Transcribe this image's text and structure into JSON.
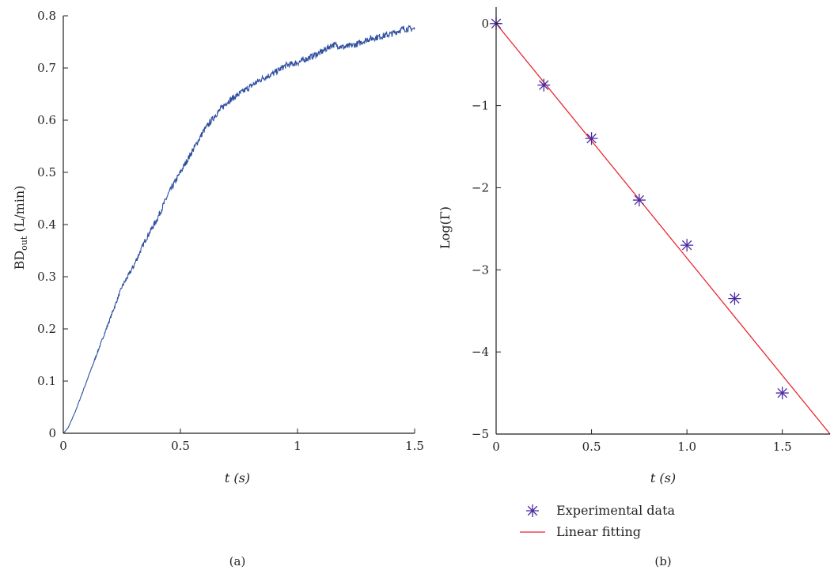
{
  "figure": {
    "panel_a_label": "(a)",
    "panel_b_label": "(b)"
  },
  "colors": {
    "series_a": "#2f4f9f",
    "markers": "#4b2aa0",
    "fit": "#e8262d",
    "axis": "#231f20"
  },
  "chart_data": [
    {
      "type": "line",
      "panel": "(a)",
      "xlabel": "t (s)",
      "ylabel": "BDout (L/min)",
      "ylabel_main": "BD",
      "ylabel_sub": "out",
      "ylabel_unit": "(L/min)",
      "xlim": [
        0,
        1.5
      ],
      "ylim": [
        0,
        0.8
      ],
      "xticks": [
        0,
        0.5,
        1,
        1.5
      ],
      "xtick_labels": [
        "0",
        "0.5",
        "1",
        "1.5"
      ],
      "yticks": [
        0,
        0.1,
        0.2,
        0.3,
        0.4,
        0.5,
        0.6,
        0.7,
        0.8
      ],
      "ytick_labels": [
        "0",
        "0.1",
        "0.2",
        "0.3",
        "0.4",
        "0.5",
        "0.6",
        "0.7",
        "0.8"
      ],
      "grid": false,
      "series": [
        {
          "x": [
            0.0,
            0.02,
            0.05,
            0.1,
            0.15,
            0.2,
            0.25,
            0.3,
            0.35,
            0.4,
            0.45,
            0.5,
            0.55,
            0.6,
            0.65,
            0.7,
            0.75,
            0.8,
            0.85,
            0.9,
            0.95,
            1.0,
            1.05,
            1.1,
            1.15,
            1.2,
            1.25,
            1.3,
            1.35,
            1.4,
            1.45,
            1.5
          ],
          "y": [
            0.0,
            0.01,
            0.04,
            0.1,
            0.16,
            0.22,
            0.28,
            0.32,
            0.37,
            0.41,
            0.46,
            0.5,
            0.54,
            0.58,
            0.61,
            0.635,
            0.65,
            0.665,
            0.68,
            0.69,
            0.705,
            0.71,
            0.72,
            0.73,
            0.745,
            0.74,
            0.745,
            0.755,
            0.76,
            0.765,
            0.775,
            0.775
          ]
        }
      ]
    },
    {
      "type": "scatter",
      "panel": "(b)",
      "xlabel": "t (s)",
      "ylabel": "Log(Γ)",
      "xlim": [
        0,
        1.75
      ],
      "ylim": [
        -5,
        0.2
      ],
      "xticks": [
        0,
        0.5,
        1.0,
        1.5
      ],
      "xtick_labels": [
        "0",
        "0.5",
        "1.0",
        "1.5"
      ],
      "yticks": [
        -5,
        -4,
        -3,
        -2,
        -1,
        0
      ],
      "ytick_labels": [
        "−5",
        "−4",
        "−3",
        "−2",
        "−1",
        "0"
      ],
      "grid": false,
      "legend_position": "bottom",
      "series": [
        {
          "name": "Experimental data",
          "marker": "asterisk",
          "x": [
            0,
            0.25,
            0.5,
            0.75,
            1.0,
            1.25,
            1.5
          ],
          "y": [
            0,
            -0.75,
            -1.4,
            -2.15,
            -2.7,
            -3.35,
            -4.5
          ]
        },
        {
          "name": "Linear fitting",
          "kind": "line",
          "x": [
            0,
            1.75
          ],
          "y": [
            0,
            -5
          ]
        }
      ]
    }
  ]
}
